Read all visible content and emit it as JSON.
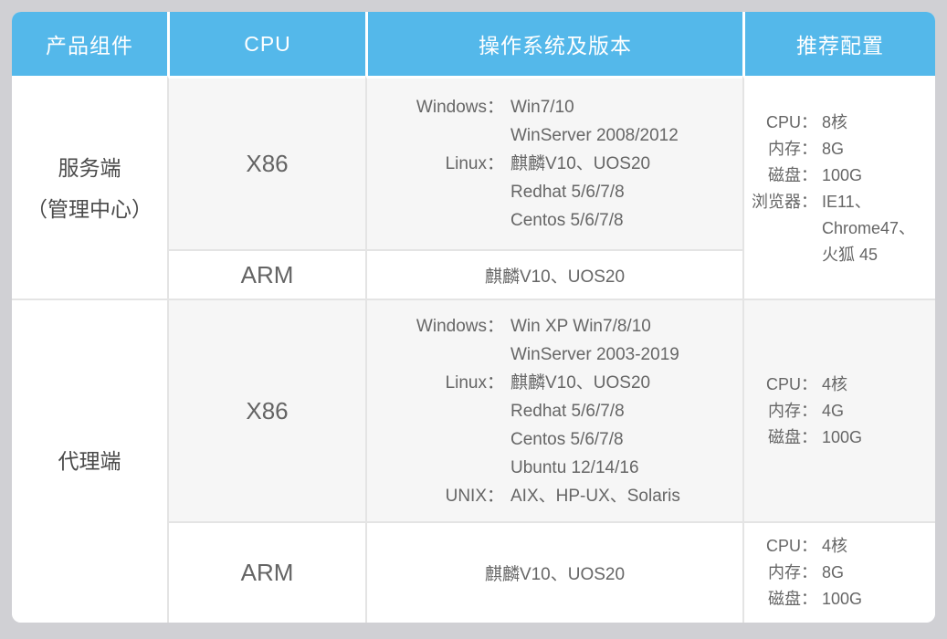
{
  "colors": {
    "page_bg": "#d0d0d4",
    "header_bg": "#54b8ea",
    "header_text": "#ffffff",
    "alt_row_bg": "#f6f6f6",
    "grid_border": "#e4e4e4",
    "body_text": "#666666",
    "product_text": "#4a4a4a"
  },
  "header": {
    "col_product": "产品组件",
    "col_cpu": "CPU",
    "col_os": "操作系统及版本",
    "col_config": "推荐配置"
  },
  "server": {
    "product_line1": "服务端",
    "product_line2": "（管理中心）",
    "x86": {
      "cpu": "X86",
      "os": [
        [
          "Windows：",
          "Win7/10"
        ],
        [
          "",
          "WinServer 2008/2012"
        ],
        [
          "Linux：",
          "麒麟V10、UOS20"
        ],
        [
          "",
          "Redhat 5/6/7/8"
        ],
        [
          "",
          "Centos 5/6/7/8"
        ]
      ]
    },
    "arm": {
      "cpu": "ARM",
      "os": "麒麟V10、UOS20"
    },
    "config": [
      [
        "CPU：",
        "8核"
      ],
      [
        "内存：",
        "8G"
      ],
      [
        "磁盘：",
        "100G"
      ],
      [
        "浏览器：",
        "IE11、"
      ],
      [
        "",
        "Chrome47、"
      ],
      [
        "",
        "火狐 45"
      ]
    ]
  },
  "agent": {
    "product_line1": "代理端",
    "x86": {
      "cpu": "X86",
      "os": [
        [
          "Windows：",
          "Win XP Win7/8/10"
        ],
        [
          "",
          "WinServer 2003-2019"
        ],
        [
          "Linux：",
          "麒麟V10、UOS20"
        ],
        [
          "",
          "Redhat 5/6/7/8"
        ],
        [
          "",
          "Centos 5/6/7/8"
        ],
        [
          "",
          "Ubuntu 12/14/16"
        ],
        [
          "UNIX：",
          "AIX、HP-UX、Solaris"
        ]
      ]
    },
    "x86_config": [
      [
        "CPU：",
        "4核"
      ],
      [
        "内存：",
        "4G"
      ],
      [
        "磁盘：",
        "100G"
      ]
    ],
    "arm": {
      "cpu": "ARM",
      "os": "麒麟V10、UOS20"
    },
    "arm_config": [
      [
        "CPU：",
        "4核"
      ],
      [
        "内存：",
        "8G"
      ],
      [
        "磁盘：",
        "100G"
      ]
    ]
  }
}
